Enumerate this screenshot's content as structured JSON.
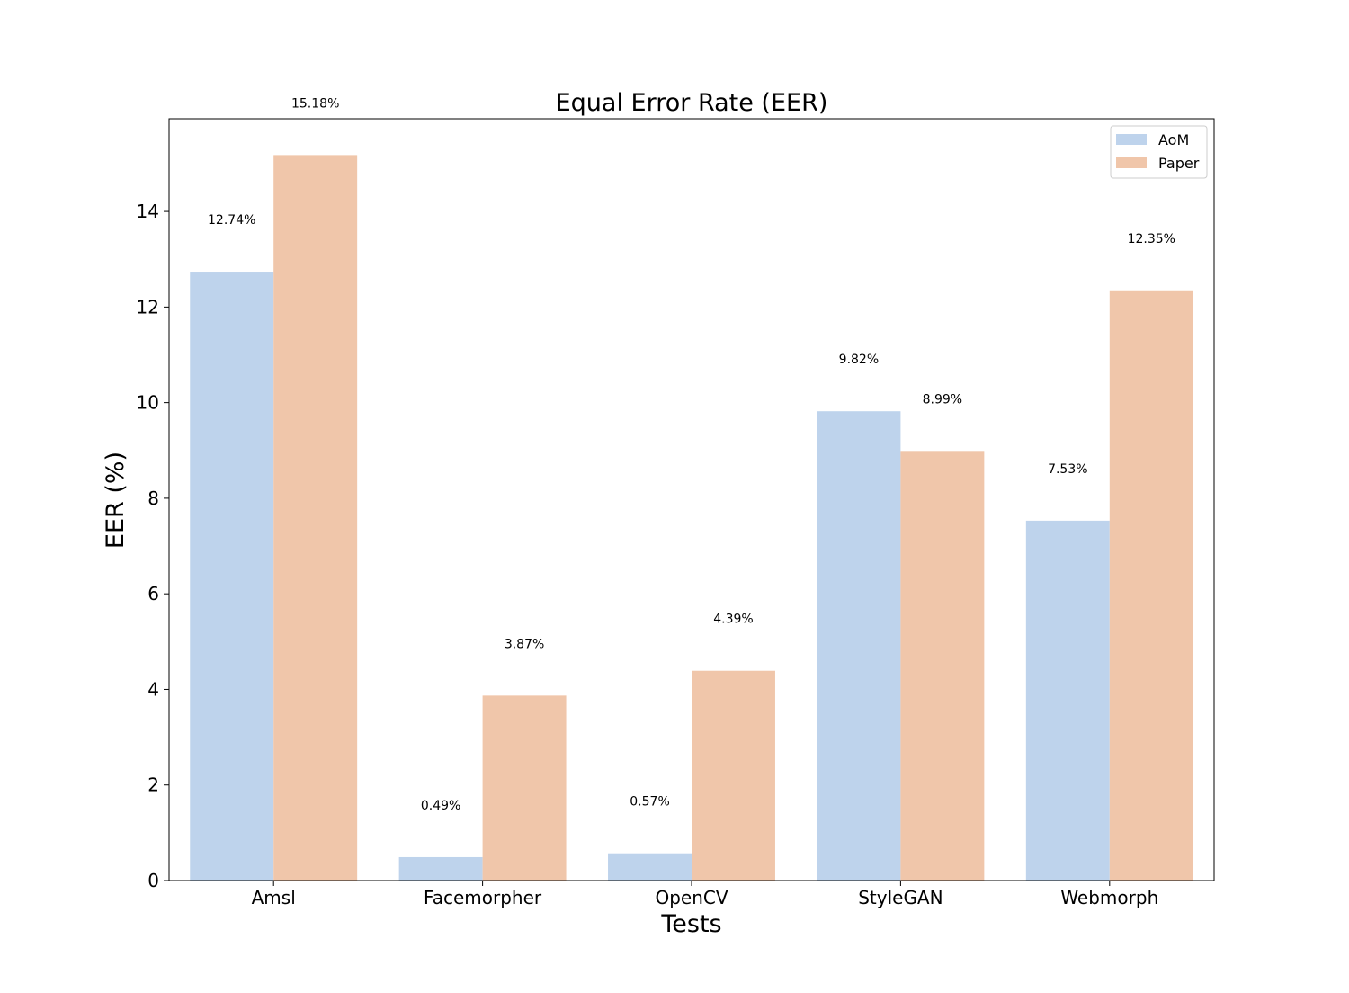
{
  "chart_data": {
    "type": "bar",
    "title": "Equal Error Rate (EER)",
    "xlabel": "Tests",
    "ylabel": "EER (%)",
    "categories": [
      "Amsl",
      "Facemorpher",
      "OpenCV",
      "StyleGAN",
      "Webmorph"
    ],
    "series": [
      {
        "name": "AoM",
        "color": "#bed3ec",
        "values": [
          12.74,
          0.49,
          0.57,
          9.82,
          7.53
        ],
        "labels": [
          "12.74%",
          "0.49%",
          "0.57%",
          "9.82%",
          "7.53%"
        ]
      },
      {
        "name": "Paper",
        "color": "#f0c6aa",
        "values": [
          15.18,
          3.87,
          4.39,
          8.99,
          12.35
        ],
        "labels": [
          "15.18%",
          "3.87%",
          "4.39%",
          "8.99%",
          "12.35%"
        ]
      }
    ],
    "ylim": [
      0,
      15.94
    ],
    "yticks": [
      0,
      2,
      4,
      6,
      8,
      10,
      12,
      14
    ],
    "grid": false,
    "legend_position": "top-right"
  }
}
